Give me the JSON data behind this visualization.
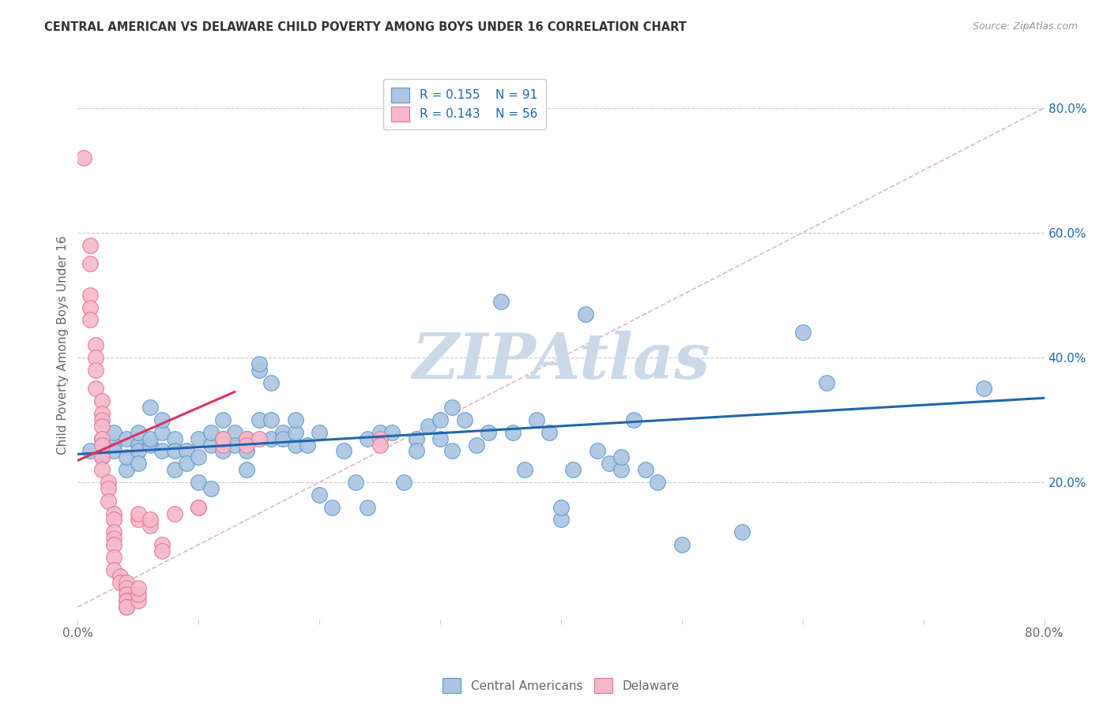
{
  "title": "CENTRAL AMERICAN VS DELAWARE CHILD POVERTY AMONG BOYS UNDER 16 CORRELATION CHART",
  "source": "Source: ZipAtlas.com",
  "ylabel": "Child Poverty Among Boys Under 16",
  "r_blue": 0.155,
  "n_blue": 91,
  "r_pink": 0.143,
  "n_pink": 56,
  "blue_color": "#aac4e2",
  "blue_edge_color": "#5a96cc",
  "blue_line_color": "#2166ac",
  "pink_color": "#f5b8cb",
  "pink_edge_color": "#e87090",
  "pink_line_color": "#d9365a",
  "legend_blue_label": "Central Americans",
  "legend_pink_label": "Delaware",
  "blue_scatter": [
    [
      0.01,
      0.25
    ],
    [
      0.02,
      0.27
    ],
    [
      0.02,
      0.24
    ],
    [
      0.03,
      0.26
    ],
    [
      0.03,
      0.28
    ],
    [
      0.03,
      0.25
    ],
    [
      0.04,
      0.22
    ],
    [
      0.04,
      0.24
    ],
    [
      0.04,
      0.27
    ],
    [
      0.05,
      0.26
    ],
    [
      0.05,
      0.28
    ],
    [
      0.05,
      0.25
    ],
    [
      0.05,
      0.23
    ],
    [
      0.06,
      0.32
    ],
    [
      0.06,
      0.26
    ],
    [
      0.06,
      0.27
    ],
    [
      0.07,
      0.25
    ],
    [
      0.07,
      0.28
    ],
    [
      0.07,
      0.3
    ],
    [
      0.08,
      0.27
    ],
    [
      0.08,
      0.25
    ],
    [
      0.08,
      0.22
    ],
    [
      0.09,
      0.25
    ],
    [
      0.09,
      0.23
    ],
    [
      0.1,
      0.27
    ],
    [
      0.1,
      0.24
    ],
    [
      0.1,
      0.2
    ],
    [
      0.11,
      0.26
    ],
    [
      0.11,
      0.28
    ],
    [
      0.11,
      0.19
    ],
    [
      0.12,
      0.27
    ],
    [
      0.12,
      0.25
    ],
    [
      0.12,
      0.3
    ],
    [
      0.13,
      0.28
    ],
    [
      0.13,
      0.26
    ],
    [
      0.14,
      0.22
    ],
    [
      0.14,
      0.25
    ],
    [
      0.14,
      0.27
    ],
    [
      0.15,
      0.3
    ],
    [
      0.15,
      0.38
    ],
    [
      0.15,
      0.39
    ],
    [
      0.16,
      0.36
    ],
    [
      0.16,
      0.27
    ],
    [
      0.16,
      0.3
    ],
    [
      0.17,
      0.28
    ],
    [
      0.17,
      0.27
    ],
    [
      0.18,
      0.26
    ],
    [
      0.18,
      0.28
    ],
    [
      0.18,
      0.3
    ],
    [
      0.19,
      0.26
    ],
    [
      0.2,
      0.28
    ],
    [
      0.2,
      0.18
    ],
    [
      0.21,
      0.16
    ],
    [
      0.22,
      0.25
    ],
    [
      0.23,
      0.2
    ],
    [
      0.24,
      0.16
    ],
    [
      0.24,
      0.27
    ],
    [
      0.25,
      0.28
    ],
    [
      0.26,
      0.28
    ],
    [
      0.27,
      0.2
    ],
    [
      0.28,
      0.27
    ],
    [
      0.28,
      0.25
    ],
    [
      0.29,
      0.29
    ],
    [
      0.3,
      0.27
    ],
    [
      0.3,
      0.3
    ],
    [
      0.31,
      0.25
    ],
    [
      0.31,
      0.32
    ],
    [
      0.32,
      0.3
    ],
    [
      0.33,
      0.26
    ],
    [
      0.34,
      0.28
    ],
    [
      0.35,
      0.49
    ],
    [
      0.36,
      0.28
    ],
    [
      0.37,
      0.22
    ],
    [
      0.38,
      0.3
    ],
    [
      0.39,
      0.28
    ],
    [
      0.4,
      0.14
    ],
    [
      0.4,
      0.16
    ],
    [
      0.41,
      0.22
    ],
    [
      0.42,
      0.47
    ],
    [
      0.43,
      0.25
    ],
    [
      0.44,
      0.23
    ],
    [
      0.45,
      0.22
    ],
    [
      0.45,
      0.24
    ],
    [
      0.46,
      0.3
    ],
    [
      0.47,
      0.22
    ],
    [
      0.48,
      0.2
    ],
    [
      0.5,
      0.1
    ],
    [
      0.55,
      0.12
    ],
    [
      0.6,
      0.44
    ],
    [
      0.62,
      0.36
    ],
    [
      0.75,
      0.35
    ]
  ],
  "pink_scatter": [
    [
      0.005,
      0.72
    ],
    [
      0.01,
      0.58
    ],
    [
      0.01,
      0.55
    ],
    [
      0.01,
      0.5
    ],
    [
      0.01,
      0.48
    ],
    [
      0.01,
      0.46
    ],
    [
      0.015,
      0.42
    ],
    [
      0.015,
      0.4
    ],
    [
      0.015,
      0.38
    ],
    [
      0.015,
      0.35
    ],
    [
      0.02,
      0.33
    ],
    [
      0.02,
      0.31
    ],
    [
      0.02,
      0.3
    ],
    [
      0.02,
      0.29
    ],
    [
      0.02,
      0.27
    ],
    [
      0.02,
      0.26
    ],
    [
      0.02,
      0.24
    ],
    [
      0.02,
      0.22
    ],
    [
      0.025,
      0.2
    ],
    [
      0.025,
      0.19
    ],
    [
      0.025,
      0.17
    ],
    [
      0.03,
      0.15
    ],
    [
      0.03,
      0.14
    ],
    [
      0.03,
      0.12
    ],
    [
      0.03,
      0.11
    ],
    [
      0.03,
      0.1
    ],
    [
      0.03,
      0.08
    ],
    [
      0.03,
      0.06
    ],
    [
      0.035,
      0.05
    ],
    [
      0.035,
      0.04
    ],
    [
      0.04,
      0.04
    ],
    [
      0.04,
      0.03
    ],
    [
      0.04,
      0.02
    ],
    [
      0.04,
      0.01
    ],
    [
      0.04,
      0.01
    ],
    [
      0.04,
      0.0
    ],
    [
      0.04,
      0.0
    ],
    [
      0.05,
      0.01
    ],
    [
      0.05,
      0.02
    ],
    [
      0.05,
      0.03
    ],
    [
      0.05,
      0.14
    ],
    [
      0.05,
      0.15
    ],
    [
      0.06,
      0.13
    ],
    [
      0.06,
      0.14
    ],
    [
      0.07,
      0.1
    ],
    [
      0.07,
      0.09
    ],
    [
      0.08,
      0.15
    ],
    [
      0.1,
      0.16
    ],
    [
      0.1,
      0.16
    ],
    [
      0.12,
      0.26
    ],
    [
      0.12,
      0.27
    ],
    [
      0.14,
      0.27
    ],
    [
      0.14,
      0.26
    ],
    [
      0.15,
      0.27
    ],
    [
      0.25,
      0.27
    ],
    [
      0.25,
      0.26
    ]
  ],
  "xlim": [
    0.0,
    0.8
  ],
  "ylim": [
    -0.02,
    0.86
  ],
  "xticks": [
    0.0,
    0.1,
    0.2,
    0.3,
    0.4,
    0.5,
    0.6,
    0.7,
    0.8
  ],
  "yticks_right": [
    0.2,
    0.4,
    0.6,
    0.8
  ],
  "ytick_labels_right": [
    "20.0%",
    "40.0%",
    "60.0%",
    "80.0%"
  ],
  "xtick_labels_bottom": [
    "0.0%",
    "",
    "",
    "",
    "",
    "",
    "",
    "",
    "80.0%"
  ],
  "blue_trend": [
    0.0,
    0.8,
    0.245,
    0.335
  ],
  "pink_trend": [
    0.0,
    0.13,
    0.235,
    0.345
  ],
  "diag_line_color": "#e0b0b8",
  "blue_line_color_plot": "#2166ac",
  "pink_line_color_plot": "#d9365a",
  "watermark": "ZIPAtlas",
  "watermark_color": "#ccd9e8",
  "background_color": "#ffffff",
  "grid_color": "#cccccc",
  "title_color": "#333333",
  "axis_color": "#666666",
  "right_tick_color": "#2166ac"
}
